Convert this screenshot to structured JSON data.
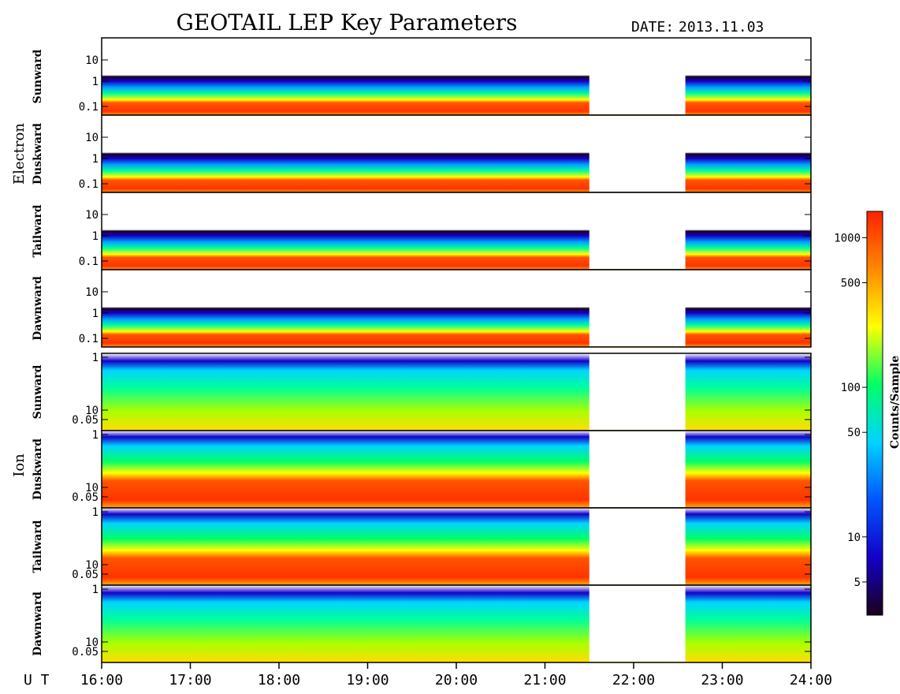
{
  "header": {
    "title": "GEOTAIL LEP Key Parameters",
    "date_label": "DATE:",
    "date_value": "2013.11.03"
  },
  "groups": [
    {
      "label": "Electron"
    },
    {
      "label": "Ion"
    }
  ],
  "colorbar": {
    "label": "Counts/Sample",
    "ticks": [
      "1000",
      "500",
      "100",
      "50",
      "10",
      "5"
    ],
    "tick_values": [
      1000,
      500,
      100,
      50,
      10,
      5
    ],
    "range": [
      3,
      1500
    ],
    "scale": "log",
    "colors": [
      "#1a001a",
      "#1400c8",
      "#0055ff",
      "#00d4ff",
      "#00ff66",
      "#ffff00",
      "#ff8800",
      "#ff2200"
    ]
  },
  "x_axis": {
    "prefix": "U T",
    "ticks": [
      "16:00",
      "17:00",
      "18:00",
      "19:00",
      "20:00",
      "21:00",
      "22:00",
      "23:00",
      "24:00"
    ]
  },
  "chart_data": {
    "type": "heatmap",
    "title": "GEOTAIL LEP Key Parameters",
    "x_range": [
      "16:00",
      "24:00"
    ],
    "data_gap": [
      "21:30",
      "22:35"
    ],
    "colorbar_label": "Counts/Sample",
    "panels": [
      {
        "group": "Electron",
        "direction": "Sunward",
        "y_ticks": [
          "10",
          "1",
          "0.1"
        ],
        "y_scale": "log"
      },
      {
        "group": "Electron",
        "direction": "Duskward",
        "y_ticks": [
          "10",
          "1",
          "0.1"
        ],
        "y_scale": "log"
      },
      {
        "group": "Electron",
        "direction": "Tailward",
        "y_ticks": [
          "10",
          "1",
          "0.1"
        ],
        "y_scale": "log"
      },
      {
        "group": "Electron",
        "direction": "Dawnward",
        "y_ticks": [
          "10",
          "1",
          "0.1"
        ],
        "y_scale": "log"
      },
      {
        "group": "Ion",
        "direction": "Sunward",
        "y_ticks": [
          "10",
          "1",
          "0.05"
        ],
        "y_scale": "log"
      },
      {
        "group": "Ion",
        "direction": "Duskward",
        "y_ticks": [
          "10",
          "1",
          "0.05"
        ],
        "y_scale": "log"
      },
      {
        "group": "Ion",
        "direction": "Tailward",
        "y_ticks": [
          "10",
          "1",
          "0.05"
        ],
        "y_scale": "log"
      },
      {
        "group": "Ion",
        "direction": "Dawnward",
        "y_ticks": [
          "10",
          "1",
          "0.05"
        ],
        "y_scale": "log"
      }
    ]
  }
}
